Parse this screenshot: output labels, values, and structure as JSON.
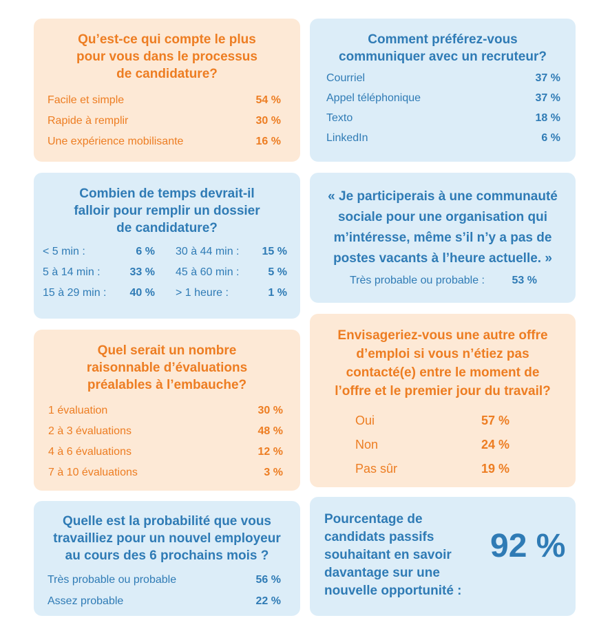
{
  "card1": {
    "title": "Qu’est-ce qui compte le plus\npour vous dans le processus\nde candidature?",
    "rows": [
      {
        "label": "Facile et simple",
        "value": "54 %"
      },
      {
        "label": "Rapide à remplir",
        "value": "30 %"
      },
      {
        "label": "Une expérience mobilisante",
        "value": "16 %"
      }
    ]
  },
  "card2": {
    "title": "Comment préférez-vous\ncommuniquer avec un recruteur?",
    "rows": [
      {
        "label": "Courriel",
        "value": "37 %"
      },
      {
        "label": "Appel téléphonique",
        "value": "37 %"
      },
      {
        "label": "Texto",
        "value": "18 %"
      },
      {
        "label": "LinkedIn",
        "value": "6 %"
      }
    ]
  },
  "card3": {
    "title": "Combien de temps devrait-il\nfalloir pour remplir un dossier\nde candidature?",
    "left": [
      {
        "label": "< 5 min :",
        "value": "6 %"
      },
      {
        "label": "5 à 14 min :",
        "value": "33 %"
      },
      {
        "label": "15 à 29 min :",
        "value": "40 %"
      }
    ],
    "right": [
      {
        "label": "30 à 44 min :",
        "value": "15 %"
      },
      {
        "label": "45 à 60 min :",
        "value": "5 %"
      },
      {
        "label": "> 1 heure :",
        "value": "1 %"
      }
    ]
  },
  "card4": {
    "title": "« Je participerais à une communauté\nsociale pour une organisation qui\nm’intéresse, même s’il n’y a pas de\npostes vacants à l’heure actuelle. »",
    "label": "Très probable ou probable :",
    "value": "53 %"
  },
  "card5": {
    "title": "Quel serait un nombre\nraisonnable d’évaluations\npréalables à l’embauche?",
    "rows": [
      {
        "label": "1 évaluation",
        "value": "30 %"
      },
      {
        "label": "2 à 3 évaluations",
        "value": "48 %"
      },
      {
        "label": "4 à 6 évaluations",
        "value": "12 %"
      },
      {
        "label": "7 à 10 évaluations",
        "value": "3 %"
      }
    ]
  },
  "card6": {
    "title": "Envisageriez-vous une autre offre\nd’emploi si vous n’étiez pas\ncontacté(e) entre le moment de\nl’offre et le premier jour du travail?",
    "rows": [
      {
        "label": "Oui",
        "value": "57 %"
      },
      {
        "label": "Non",
        "value": "24 %"
      },
      {
        "label": "Pas sûr",
        "value": "19 %"
      }
    ]
  },
  "card7": {
    "title": "Quelle est la probabilité que vous\ntravailliez pour un nouvel employeur\nau cours des 6 prochains mois ?",
    "rows": [
      {
        "label": "Très probable ou probable",
        "value": "56 %"
      },
      {
        "label": "Assez probable",
        "value": "22 %"
      }
    ]
  },
  "card8": {
    "text": "Pourcentage de\ncandidats passifs\nsouhaitant en savoir\ndavantage sur une\nnouvelle opportunité :",
    "value": "92 %"
  },
  "colors": {
    "orange_bg": "#fde9d6",
    "orange_text": "#ed7d22",
    "blue_bg": "#dcedf8",
    "blue_text": "#2f7bb5"
  }
}
